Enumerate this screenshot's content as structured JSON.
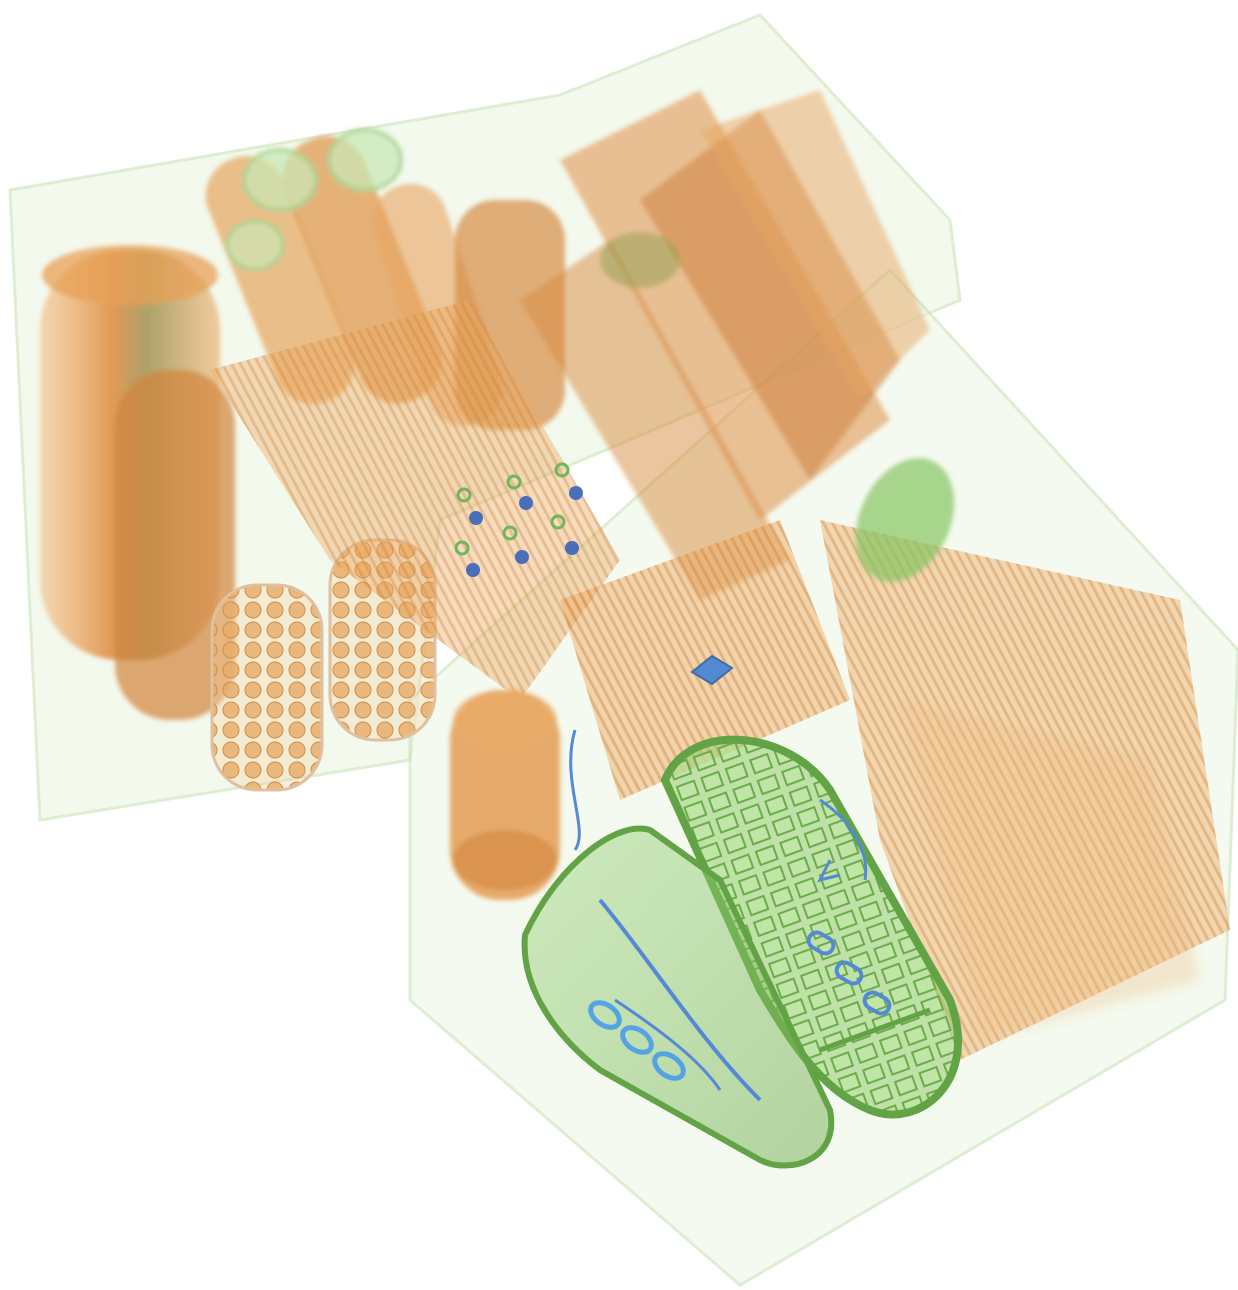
{
  "image": {
    "kind": "x-ray-scan",
    "subject": "luggage-contents",
    "colors": {
      "background": "#ffffff",
      "organic": "#e08a2a",
      "organic_dark": "#b86a18",
      "mixed": "#5aa02c",
      "mixed_light": "#9fd47a",
      "metal": "#1f5fb8",
      "case_tint": "#cfe8c0"
    }
  }
}
